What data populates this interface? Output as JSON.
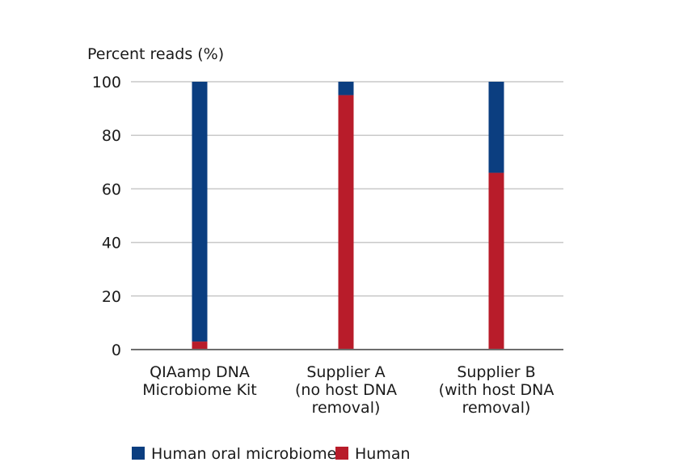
{
  "chart_data": {
    "type": "bar",
    "stacked": true,
    "ylabel": "Percent reads (%)",
    "ylim": [
      0,
      100
    ],
    "yticks": [
      "0",
      "20",
      "40",
      "60",
      "80",
      "100"
    ],
    "grid": true,
    "legend_position": "bottom",
    "categories": [
      [
        "QIAamp DNA",
        "Microbiome Kit"
      ],
      [
        "Supplier A",
        "(no host DNA",
        "removal)"
      ],
      [
        "Supplier B",
        "(with host DNA",
        "removal)"
      ]
    ],
    "series": [
      {
        "name": "Human",
        "color": "#b81c2a",
        "values": [
          3,
          95,
          66
        ]
      },
      {
        "name": "Human oral microbiome",
        "color": "#0b3e80",
        "values": [
          97,
          5,
          34
        ]
      }
    ],
    "legend": [
      {
        "name": "Human oral microbiome",
        "color": "#0b3e80"
      },
      {
        "name": "Human",
        "color": "#b81c2a"
      }
    ]
  }
}
